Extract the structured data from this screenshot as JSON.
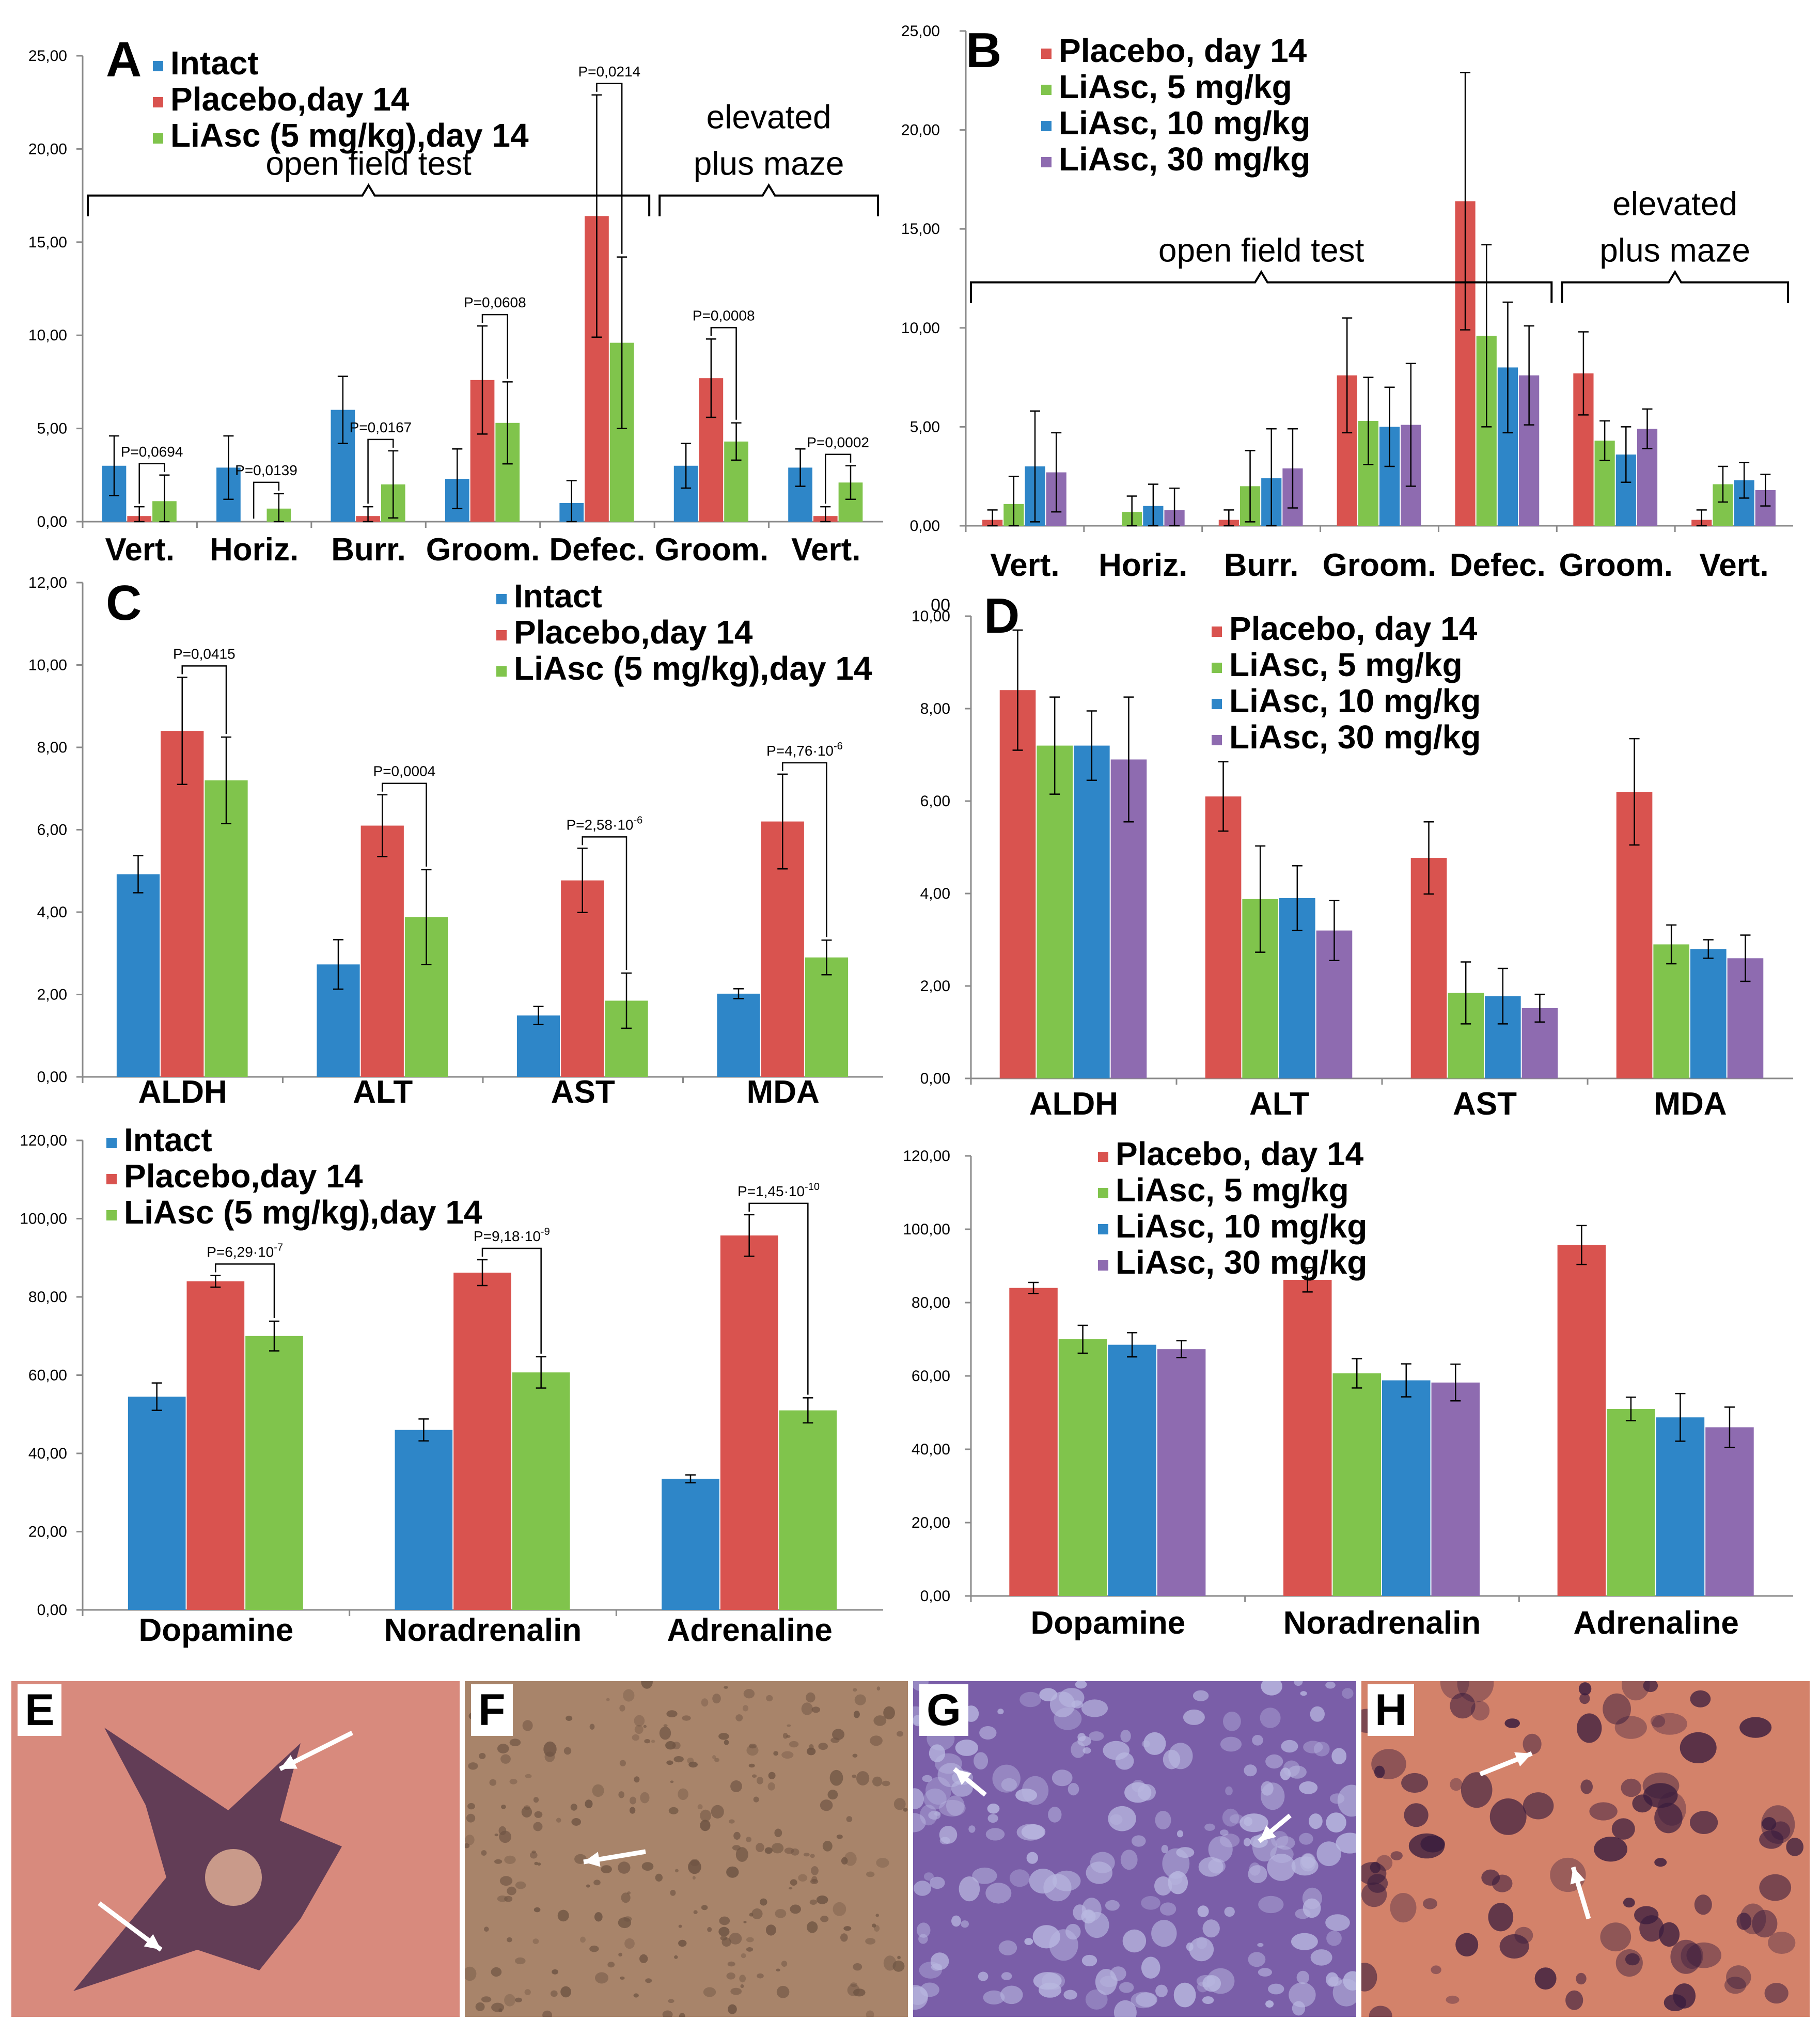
{
  "colors": {
    "intact": "#2E86C8",
    "placebo": "#D9534F",
    "liasc5": "#80C44C",
    "liasc10": "#2E86C8",
    "liasc30": "#8E6BB0",
    "axis": "#8a8a8a",
    "text": "#000000"
  },
  "chart_data": [
    {
      "id": "A",
      "type": "bar",
      "panel_label": "A",
      "ylim": [
        0,
        25
      ],
      "yticks": [
        "0,00",
        "5,00",
        "10,00",
        "15,00",
        "20,00",
        "25,00"
      ],
      "categories": [
        "Vert.",
        "Horiz.",
        "Burr.",
        "Groom.",
        "Defec.",
        "Groom.",
        "Vert."
      ],
      "series": [
        {
          "name": "Intact",
          "color": "intact",
          "values": [
            3.0,
            2.9,
            6.0,
            2.3,
            1.0,
            3.0,
            2.9
          ],
          "errors": [
            1.6,
            1.7,
            1.8,
            1.6,
            1.2,
            1.2,
            1.0
          ]
        },
        {
          "name": "Placebo,day 14",
          "color": "placebo",
          "values": [
            0.3,
            0.0,
            0.3,
            7.6,
            16.4,
            7.7,
            0.3
          ],
          "errors": [
            0.5,
            0.0,
            0.5,
            2.9,
            6.5,
            2.1,
            0.5
          ]
        },
        {
          "name": "LiAsc (5 mg/kg),day 14",
          "color": "liasc5",
          "values": [
            1.1,
            0.7,
            2.0,
            5.3,
            9.6,
            4.3,
            2.1
          ],
          "errors": [
            1.4,
            0.8,
            1.8,
            2.2,
            4.6,
            1.0,
            0.9
          ]
        }
      ],
      "pvalues": [
        {
          "text": "P=0,0694",
          "cat": 0
        },
        {
          "text": "P=0,0139",
          "cat": 1
        },
        {
          "text": "P=0,0167",
          "cat": 2
        },
        {
          "text": "P=0,0608",
          "cat": 3
        },
        {
          "text": "P=0,0214",
          "cat": 4
        },
        {
          "text": "P=0,0008",
          "cat": 5
        },
        {
          "text": "P=0,0002",
          "cat": 6
        }
      ],
      "groups": [
        {
          "label": "open field test",
          "from": 0,
          "to": 4
        },
        {
          "label_lines": [
            "elevated",
            "plus maze"
          ],
          "from": 5,
          "to": 6
        }
      ]
    },
    {
      "id": "B",
      "type": "bar",
      "panel_label": "B",
      "ylim": [
        0,
        25
      ],
      "yticks": [
        "0,00",
        "5,00",
        "10,00",
        "15,00",
        "20,00",
        "25,00"
      ],
      "categories": [
        "Vert.",
        "Horiz.",
        "Burr.",
        "Groom.",
        "Defec.",
        "Groom.",
        "Vert."
      ],
      "series": [
        {
          "name": "Placebo, day 14",
          "color": "placebo",
          "values": [
            0.3,
            0.0,
            0.3,
            7.6,
            16.4,
            7.7,
            0.3
          ],
          "errors": [
            0.5,
            0.0,
            0.5,
            2.9,
            6.5,
            2.1,
            0.5
          ]
        },
        {
          "name": "LiAsc, 5 mg/kg",
          "color": "liasc5",
          "values": [
            1.1,
            0.7,
            2.0,
            5.3,
            9.6,
            4.3,
            2.1
          ],
          "errors": [
            1.4,
            0.8,
            1.8,
            2.2,
            4.6,
            1.0,
            0.9
          ]
        },
        {
          "name": "LiAsc, 10 mg/kg",
          "color": "liasc10",
          "values": [
            3.0,
            1.0,
            2.4,
            5.0,
            8.0,
            3.6,
            2.3
          ],
          "errors": [
            2.8,
            1.1,
            2.5,
            2.0,
            3.3,
            1.4,
            0.9
          ]
        },
        {
          "name": "LiAsc, 30 mg/kg",
          "color": "liasc30",
          "values": [
            2.7,
            0.8,
            2.9,
            5.1,
            7.6,
            4.9,
            1.8
          ],
          "errors": [
            2.0,
            1.1,
            2.0,
            3.1,
            2.5,
            1.0,
            0.8
          ]
        }
      ],
      "groups": [
        {
          "label": "open field test",
          "from": 0,
          "to": 4
        },
        {
          "label_lines": [
            "elevated",
            "plus maze"
          ],
          "from": 5,
          "to": 6
        }
      ]
    },
    {
      "id": "C",
      "type": "bar",
      "panel_label": "C",
      "ylim": [
        0,
        12
      ],
      "yticks": [
        "0,00",
        "2,00",
        "4,00",
        "6,00",
        "8,00",
        "10,00",
        "12,00"
      ],
      "categories": [
        "ALDH",
        "ALT",
        "AST",
        "MDA"
      ],
      "series": [
        {
          "name": "Intact",
          "color": "intact",
          "values": [
            4.92,
            2.73,
            1.49,
            2.02
          ],
          "errors": [
            0.45,
            0.6,
            0.22,
            0.12
          ]
        },
        {
          "name": "Placebo,day 14",
          "color": "placebo",
          "values": [
            8.4,
            6.1,
            4.77,
            6.2
          ],
          "errors": [
            1.3,
            0.75,
            0.78,
            1.15
          ]
        },
        {
          "name": "LiAsc (5 mg/kg),day 14",
          "color": "liasc5",
          "values": [
            7.2,
            3.88,
            1.85,
            2.9
          ],
          "errors": [
            1.05,
            1.15,
            0.67,
            0.42
          ]
        }
      ],
      "pvalues": [
        {
          "text": "P=0,0415",
          "cat": 0
        },
        {
          "text": "P=0,0004",
          "cat": 1
        },
        {
          "text": "P=2,58·10",
          "sup": "-6",
          "cat": 2
        },
        {
          "text": "P=4,76·10",
          "sup": "-6",
          "cat": 3
        }
      ]
    },
    {
      "id": "D",
      "type": "bar",
      "panel_label": "D",
      "ylim": [
        0,
        10
      ],
      "yticks": [
        "0,00",
        "2,00",
        "4,00",
        "6,00",
        "8,00",
        "10,00"
      ],
      "top_tick": "00",
      "categories": [
        "ALDH",
        "ALT",
        "AST",
        "MDA"
      ],
      "series": [
        {
          "name": "Placebo, day 14",
          "color": "placebo",
          "values": [
            8.4,
            6.1,
            4.77,
            6.2
          ],
          "errors": [
            1.3,
            0.75,
            0.78,
            1.15
          ]
        },
        {
          "name": "LiAsc, 5 mg/kg",
          "color": "liasc5",
          "values": [
            7.2,
            3.88,
            1.85,
            2.9
          ],
          "errors": [
            1.05,
            1.15,
            0.67,
            0.42
          ]
        },
        {
          "name": "LiAsc, 10 mg/kg",
          "color": "liasc10",
          "values": [
            7.2,
            3.9,
            1.78,
            2.8
          ],
          "errors": [
            0.75,
            0.7,
            0.6,
            0.2
          ]
        },
        {
          "name": "LiAsc, 30 mg/kg",
          "color": "liasc30",
          "values": [
            6.9,
            3.2,
            1.52,
            2.6
          ],
          "errors": [
            1.35,
            0.65,
            0.3,
            0.5
          ]
        }
      ]
    },
    {
      "id": "E",
      "type": "bar",
      "panel_label": "",
      "ylim": [
        0,
        120
      ],
      "yticks": [
        "0,00",
        "20,00",
        "40,00",
        "60,00",
        "80,00",
        "100,00",
        "120,00"
      ],
      "categories": [
        "Dopamine",
        "Noradrenalin",
        "Adrenaline"
      ],
      "series": [
        {
          "name": "Intact",
          "color": "intact",
          "values": [
            54.5,
            46.0,
            33.5
          ],
          "errors": [
            3.5,
            2.8,
            1.0
          ]
        },
        {
          "name": "Placebo,day 14",
          "color": "placebo",
          "values": [
            84.0,
            86.2,
            95.7
          ],
          "errors": [
            1.5,
            3.3,
            5.3
          ]
        },
        {
          "name": "LiAsc (5 mg/kg),day 14",
          "color": "liasc5",
          "values": [
            70.0,
            60.7,
            51.0
          ],
          "errors": [
            3.8,
            4.0,
            3.2
          ]
        }
      ],
      "pvalues": [
        {
          "text": "P=6,29·10",
          "sup": "-7",
          "cat": 0
        },
        {
          "text": "P=9,18·10",
          "sup": "-9",
          "cat": 1
        },
        {
          "text": "P=1,45·10",
          "sup": "-10",
          "cat": 2
        }
      ]
    },
    {
      "id": "F",
      "type": "bar",
      "panel_label": "",
      "ylim": [
        0,
        120
      ],
      "yticks": [
        "0,00",
        "20,00",
        "40,00",
        "60,00",
        "80,00",
        "100,00",
        "120,00"
      ],
      "categories": [
        "Dopamine",
        "Noradrenalin",
        "Adrenaline"
      ],
      "series": [
        {
          "name": "Placebo, day 14",
          "color": "placebo",
          "values": [
            84.0,
            86.2,
            95.7
          ],
          "errors": [
            1.5,
            3.3,
            5.3
          ]
        },
        {
          "name": "LiAsc, 5 mg/kg",
          "color": "liasc5",
          "values": [
            70.0,
            60.7,
            51.0
          ],
          "errors": [
            3.8,
            4.0,
            3.2
          ]
        },
        {
          "name": "LiAsc, 10 mg/kg",
          "color": "liasc10",
          "values": [
            68.5,
            58.8,
            48.7
          ],
          "errors": [
            3.3,
            4.5,
            6.5
          ]
        },
        {
          "name": "LiAsc, 30 mg/kg",
          "color": "liasc30",
          "values": [
            67.3,
            58.2,
            46.0
          ],
          "errors": [
            2.3,
            5.0,
            5.5
          ]
        }
      ]
    }
  ],
  "micrographs": [
    {
      "label": "E",
      "background": "#d88a7d",
      "tone": "#b86a60"
    },
    {
      "label": "F",
      "background": "#a8846a",
      "tone": "#6e5443"
    },
    {
      "label": "G",
      "background": "#7a5ea8",
      "tone": "#b9b8e0"
    },
    {
      "label": "H",
      "background": "#d3826a",
      "tone": "#3a1d3e"
    }
  ]
}
